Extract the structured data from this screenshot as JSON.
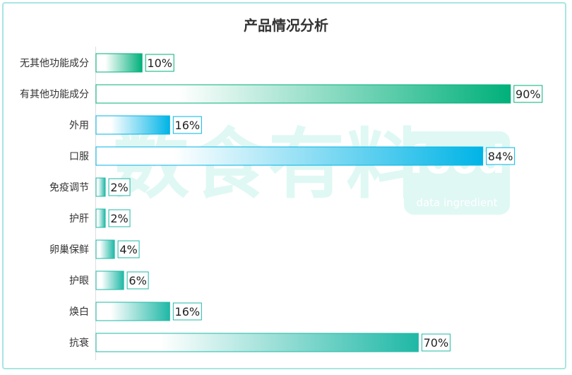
{
  "chart_data": {
    "type": "bar",
    "orientation": "horizontal",
    "title": "产品情况分析",
    "categories": [
      "无其他功能成分",
      "有其他功能成分",
      "外用",
      "口服",
      "免疫调节",
      "护肝",
      "卵巢保鲜",
      "护眼",
      "焕白",
      "抗衰"
    ],
    "values": [
      10,
      90,
      16,
      84,
      2,
      2,
      4,
      6,
      16,
      70
    ],
    "value_labels": [
      "10%",
      "90%",
      "16%",
      "84%",
      "2%",
      "2%",
      "4%",
      "6%",
      "16%",
      "70%"
    ],
    "colors": [
      "#00b07a",
      "#00b07a",
      "#00b4e6",
      "#00b4e6",
      "#1fb8a6",
      "#1fb8a6",
      "#1fb8a6",
      "#1fb8a6",
      "#1fb8a6",
      "#1fb8a6"
    ],
    "xlim": [
      0,
      100
    ],
    "grid": false,
    "legend": "none"
  },
  "watermark": {
    "text": "数食有料",
    "logo_word": "food",
    "logo_sub": "data ingredient"
  }
}
